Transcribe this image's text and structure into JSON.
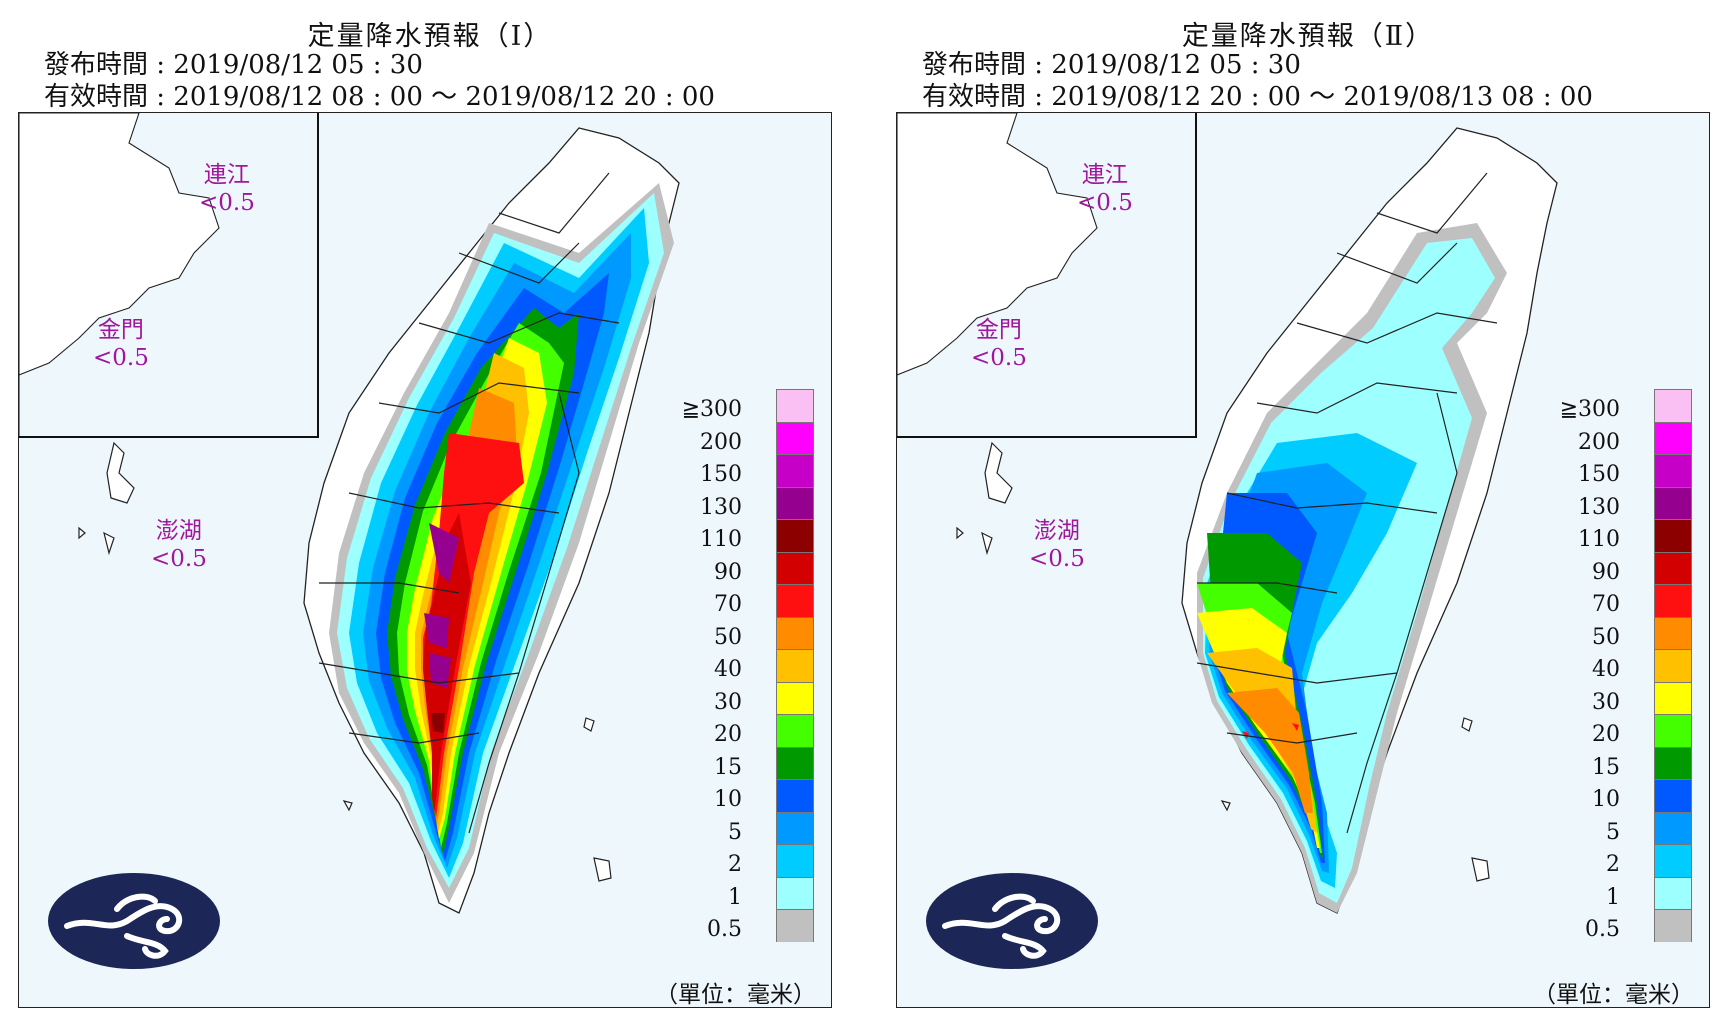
{
  "panels": [
    {
      "title": "定量降水預報（Ⅰ）",
      "issue": "發布時間 : 2019/08/12 05 : 30",
      "valid": "有效時間 : 2019/08/12 08 : 00 ～ 2019/08/12 20 : 00",
      "islands": [
        {
          "name": "連江",
          "value": "<0.5"
        },
        {
          "name": "金門",
          "value": "<0.5"
        },
        {
          "name": "澎湖",
          "value": "<0.5"
        }
      ],
      "unit": "（單位：毫米）"
    },
    {
      "title": "定量降水預報（Ⅱ）",
      "issue": "發布時間 : 2019/08/12 05 : 30",
      "valid": "有效時間 : 2019/08/12 20 : 00 ～ 2019/08/13 08 : 00",
      "islands": [
        {
          "name": "連江",
          "value": "<0.5"
        },
        {
          "name": "金門",
          "value": "<0.5"
        },
        {
          "name": "澎湖",
          "value": "<0.5"
        }
      ],
      "unit": "（單位：毫米）"
    }
  ],
  "legend": {
    "labels": [
      "≧300",
      "200",
      "150",
      "130",
      "110",
      "90",
      "70",
      "50",
      "40",
      "30",
      "20",
      "15",
      "10",
      "5",
      "2",
      "1",
      "0.5"
    ],
    "colors": [
      "#fbc0f3",
      "#ff00ff",
      "#c600c6",
      "#96008f",
      "#8c0000",
      "#d20000",
      "#ff1010",
      "#ff8c00",
      "#ffc000",
      "#ffff00",
      "#44ff00",
      "#009a00",
      "#0059ff",
      "#0099ff",
      "#00ccff",
      "#9effff",
      "#c0c0c0"
    ]
  },
  "logo_icon": "cwb-cloud-logo-icon"
}
